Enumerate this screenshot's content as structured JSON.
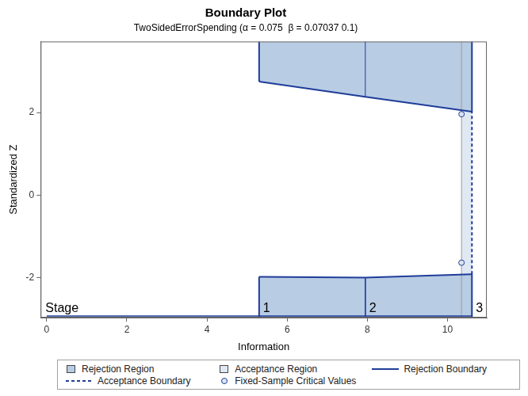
{
  "chart_data": {
    "type": "boundary",
    "title": "Boundary Plot",
    "subtitle": "TwoSidedErrorSpending (α = 0.075  β = 0.07037 0.1)",
    "x_label": "Information",
    "y_label": "Standardized Z",
    "xlim": [
      -0.15,
      10.98
    ],
    "xticks": [
      0,
      2,
      4,
      6,
      8,
      10
    ],
    "ylim": [
      -2.97,
      3.72
    ],
    "yticks": [
      -2,
      0,
      2
    ],
    "fixed_sample_information": 10.35,
    "stages": {
      "label": "Stage",
      "names": [
        "1",
        "2",
        "3"
      ],
      "x": [
        5.3,
        7.95,
        10.61
      ]
    },
    "series": [
      {
        "name": "Rejection Region",
        "type": "area",
        "color": "#b8cce4",
        "x": [
          5.3,
          7.95,
          10.61
        ],
        "upper": [
          2.75,
          2.38,
          2.02
        ],
        "lower": [
          -1.98,
          -2.0,
          -1.92
        ]
      },
      {
        "name": "Acceptance Region",
        "type": "band",
        "color": "#dfe8f3",
        "x": [
          10.35,
          10.61
        ],
        "upper": [
          2.02,
          2.02
        ],
        "lower": [
          -1.92,
          -1.92
        ]
      },
      {
        "name": "Rejection Boundary",
        "type": "line",
        "line_style": "solid",
        "color": "#1f3d99",
        "x": [
          5.3,
          7.95,
          10.61
        ],
        "upper": [
          2.75,
          2.38,
          2.02
        ],
        "lower": [
          -1.98,
          -2.0,
          -1.92
        ]
      },
      {
        "name": "Acceptance Boundary",
        "type": "line",
        "line_style": "dashed",
        "color": "#1f3d99",
        "x": [
          10.61,
          10.61
        ],
        "values": [
          -1.92,
          2.02
        ]
      },
      {
        "name": "Fixed-Sample Critical Values",
        "type": "scatter",
        "marker": "circle",
        "color": "#1f3d99",
        "x": [
          10.35,
          10.35
        ],
        "values": [
          1.96,
          -1.64
        ]
      }
    ]
  }
}
